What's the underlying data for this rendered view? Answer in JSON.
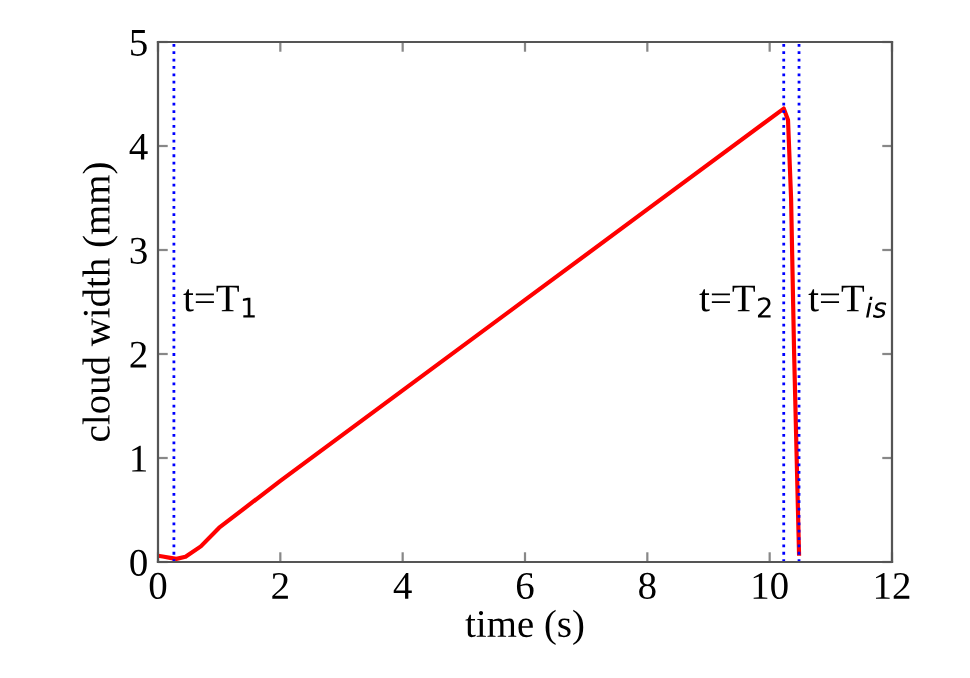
{
  "chart_data": {
    "type": "line",
    "xlabel": "time (s)",
    "ylabel": "cloud width (mm)",
    "series": [
      {
        "color": "#ff0000",
        "x": [
          0,
          0.1,
          0.2,
          0.3,
          0.45,
          0.7,
          1,
          2,
          4,
          6,
          8,
          10.23,
          10.3,
          10.35,
          10.4,
          10.48
        ],
        "values": [
          0.06,
          0.05,
          0.04,
          0.03,
          0.05,
          0.15,
          0.33,
          0.78,
          1.65,
          2.52,
          3.39,
          4.36,
          4.25,
          3.5,
          2.0,
          0.08
        ]
      }
    ],
    "xlim": [
      0,
      12
    ],
    "ylim": [
      0,
      5
    ],
    "xticks": [
      0,
      2,
      4,
      6,
      8,
      10,
      12
    ],
    "yticks": [
      0,
      1,
      2,
      3,
      4,
      5
    ],
    "ref_lines": [
      {
        "axis": "x",
        "value": 0.26,
        "label": "t=T$_{1}$",
        "color": "#0000ff",
        "line_style": "dotted"
      },
      {
        "axis": "x",
        "value": 10.23,
        "label": "t=T$_{2}$",
        "color": "#0000ff",
        "line_style": "dotted"
      },
      {
        "axis": "x",
        "value": 10.48,
        "label": "t=T$_{is}$",
        "color": "#0000ff",
        "line_style": "dotted"
      }
    ],
    "grid": false,
    "legend": false,
    "marker": "none",
    "line_style": "solid"
  }
}
